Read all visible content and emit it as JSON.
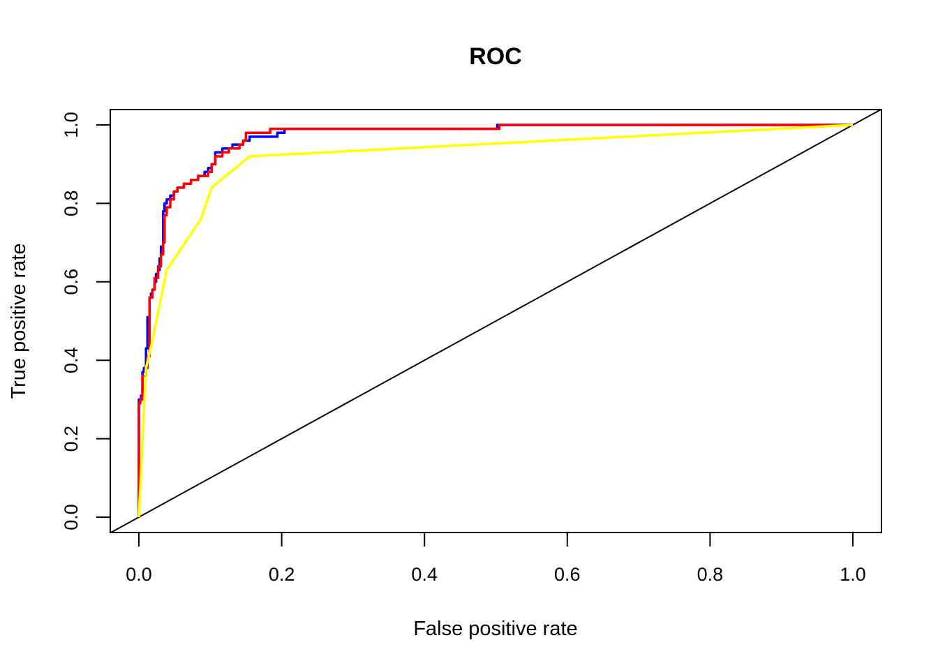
{
  "chart_data": {
    "type": "line",
    "title": "ROC",
    "xlabel": "False positive rate",
    "ylabel": "True positive rate",
    "xlim": [
      0,
      1
    ],
    "ylim": [
      0,
      1
    ],
    "x_ticks": [
      "0.0",
      "0.2",
      "0.4",
      "0.6",
      "0.8",
      "1.0"
    ],
    "y_ticks": [
      "0.0",
      "0.2",
      "0.4",
      "0.6",
      "0.8",
      "1.0"
    ],
    "grid": false,
    "reference_line": {
      "x": [
        0,
        1
      ],
      "y": [
        0,
        1
      ],
      "color": "#000000"
    },
    "series": [
      {
        "color": "#0000ff",
        "x": [
          0.0,
          0.0,
          0.003,
          0.003,
          0.005,
          0.005,
          0.007,
          0.007,
          0.01,
          0.01,
          0.012,
          0.012,
          0.015,
          0.015,
          0.017,
          0.017,
          0.019,
          0.019,
          0.022,
          0.022,
          0.024,
          0.024,
          0.027,
          0.027,
          0.029,
          0.029,
          0.031,
          0.031,
          0.034,
          0.034,
          0.036,
          0.036,
          0.039,
          0.039,
          0.044,
          0.044,
          0.049,
          0.049,
          0.054,
          0.054,
          0.063,
          0.063,
          0.073,
          0.073,
          0.083,
          0.083,
          0.092,
          0.092,
          0.097,
          0.097,
          0.102,
          0.102,
          0.107,
          0.107,
          0.117,
          0.117,
          0.131,
          0.131,
          0.146,
          0.146,
          0.155,
          0.155,
          0.16,
          0.16,
          0.194,
          0.194,
          0.204,
          0.204,
          0.502,
          0.502,
          1.0
        ],
        "y": [
          0.0,
          0.3,
          0.3,
          0.31,
          0.31,
          0.37,
          0.37,
          0.38,
          0.38,
          0.43,
          0.43,
          0.51,
          0.51,
          0.56,
          0.56,
          0.57,
          0.57,
          0.58,
          0.58,
          0.6,
          0.6,
          0.62,
          0.62,
          0.63,
          0.63,
          0.66,
          0.66,
          0.69,
          0.69,
          0.78,
          0.78,
          0.8,
          0.8,
          0.81,
          0.81,
          0.82,
          0.82,
          0.83,
          0.83,
          0.84,
          0.84,
          0.85,
          0.85,
          0.86,
          0.86,
          0.87,
          0.87,
          0.88,
          0.88,
          0.89,
          0.89,
          0.9,
          0.9,
          0.93,
          0.93,
          0.94,
          0.94,
          0.95,
          0.95,
          0.96,
          0.96,
          0.97,
          0.97,
          0.97,
          0.97,
          0.98,
          0.98,
          0.99,
          0.99,
          1.0,
          1.0
        ]
      },
      {
        "color": "#ff0000",
        "x": [
          0.0,
          0.0,
          0.002,
          0.002,
          0.005,
          0.005,
          0.01,
          0.01,
          0.012,
          0.012,
          0.015,
          0.015,
          0.019,
          0.019,
          0.022,
          0.022,
          0.027,
          0.027,
          0.031,
          0.031,
          0.034,
          0.034,
          0.036,
          0.036,
          0.039,
          0.039,
          0.044,
          0.044,
          0.049,
          0.049,
          0.054,
          0.054,
          0.063,
          0.063,
          0.073,
          0.073,
          0.083,
          0.083,
          0.097,
          0.097,
          0.102,
          0.102,
          0.107,
          0.107,
          0.117,
          0.117,
          0.126,
          0.126,
          0.141,
          0.141,
          0.146,
          0.146,
          0.15,
          0.15,
          0.184,
          0.184,
          0.505,
          0.505,
          1.0
        ],
        "y": [
          0.0,
          0.29,
          0.29,
          0.3,
          0.3,
          0.36,
          0.36,
          0.38,
          0.38,
          0.41,
          0.41,
          0.56,
          0.56,
          0.58,
          0.58,
          0.61,
          0.61,
          0.64,
          0.64,
          0.67,
          0.67,
          0.7,
          0.7,
          0.77,
          0.77,
          0.79,
          0.79,
          0.81,
          0.81,
          0.83,
          0.83,
          0.84,
          0.84,
          0.85,
          0.85,
          0.86,
          0.86,
          0.87,
          0.87,
          0.88,
          0.88,
          0.9,
          0.9,
          0.92,
          0.92,
          0.93,
          0.93,
          0.94,
          0.94,
          0.95,
          0.95,
          0.96,
          0.96,
          0.98,
          0.98,
          0.99,
          0.99,
          1.0,
          1.0
        ]
      },
      {
        "color": "#ffff00",
        "x": [
          0.0,
          0.01,
          0.019,
          0.039,
          0.087,
          0.102,
          0.155,
          1.0
        ],
        "y": [
          0.0,
          0.38,
          0.45,
          0.63,
          0.76,
          0.84,
          0.92,
          1.0
        ]
      }
    ]
  }
}
